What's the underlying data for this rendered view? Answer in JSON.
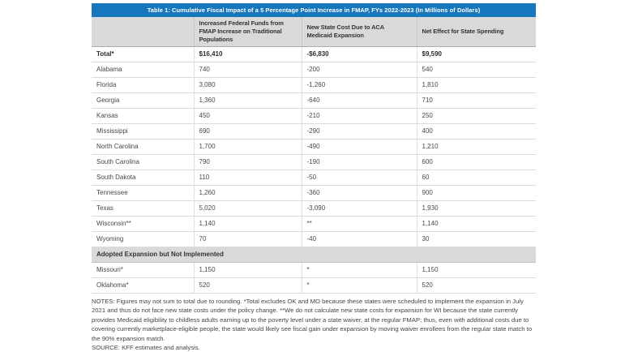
{
  "colors": {
    "title_bar_bg": "#1777bc",
    "title_text": "#ffffff",
    "header_bg": "#d9d9d9",
    "section_row_bg": "#d9d9d9",
    "row_border": "#dcdcdc",
    "body_text": "#484848"
  },
  "chart_data": {
    "type": "table",
    "title": "Table 1: Cumulative Fiscal Impact of a 5 Percentage Point Increase in FMAP, FYs 2022-2023 (In Millions of Dollars)",
    "columns": [
      "",
      "Increased Federal Funds from\nFMAP Increase on Traditional\nPopulations",
      "New State Cost Due to ACA\nMedicaid Expansion",
      "Net Effect for State Spending"
    ],
    "rows": [
      {
        "state": "Total*",
        "federal_funds": "$16,410",
        "new_state_cost": "-$6,830",
        "net_effect": "$9,590"
      },
      {
        "state": "Alabama",
        "federal_funds": "740",
        "new_state_cost": "-200",
        "net_effect": "540"
      },
      {
        "state": "Florida",
        "federal_funds": "3,080",
        "new_state_cost": "-1,260",
        "net_effect": "1,810"
      },
      {
        "state": "Georgia",
        "federal_funds": "1,360",
        "new_state_cost": "-640",
        "net_effect": "710"
      },
      {
        "state": "Kansas",
        "federal_funds": "450",
        "new_state_cost": "-210",
        "net_effect": "250"
      },
      {
        "state": "Mississippi",
        "federal_funds": "690",
        "new_state_cost": "-290",
        "net_effect": "400"
      },
      {
        "state": "North Carolina",
        "federal_funds": "1,700",
        "new_state_cost": "-490",
        "net_effect": "1,210"
      },
      {
        "state": "South Carolina",
        "federal_funds": "790",
        "new_state_cost": "-190",
        "net_effect": "600"
      },
      {
        "state": "South Dakota",
        "federal_funds": "110",
        "new_state_cost": "-50",
        "net_effect": "60"
      },
      {
        "state": "Tennessee",
        "federal_funds": "1,260",
        "new_state_cost": "-360",
        "net_effect": "900"
      },
      {
        "state": "Texas",
        "federal_funds": "5,020",
        "new_state_cost": "-3,090",
        "net_effect": "1,930"
      },
      {
        "state": "Wisconsin**",
        "federal_funds": "1,140",
        "new_state_cost": "**",
        "net_effect": "1,140"
      },
      {
        "state": "Wyoming",
        "federal_funds": "70",
        "new_state_cost": "-40",
        "net_effect": "30"
      }
    ],
    "section_header": "Adopted Expansion but Not Implemented",
    "section_rows": [
      {
        "state": "Missouri*",
        "federal_funds": "1,150",
        "new_state_cost": "*",
        "net_effect": "1,150"
      },
      {
        "state": "Oklahoma*",
        "federal_funds": "520",
        "new_state_cost": "*",
        "net_effect": "520"
      }
    ],
    "notes": "NOTES: Figures may not sum to total due to rounding. *Total excludes OK and MO because these states were scheduled to implement the expansion in July 2021 and thus do not face new state costs under the policy change. **We do not calculate new state costs for expansion for WI because the state currently provides Medicaid eligibility to childless adults earning up to the poverty level under a state waiver, at the regular FMAP; thus, even with additional costs due to covering currently marketplace-eligible people, the state would likely see fiscal gain under expansion by moving waiver enrollees from the regular state match to the 90% expansion match.",
    "source": "SOURCE: KFF estimates and analysis."
  }
}
